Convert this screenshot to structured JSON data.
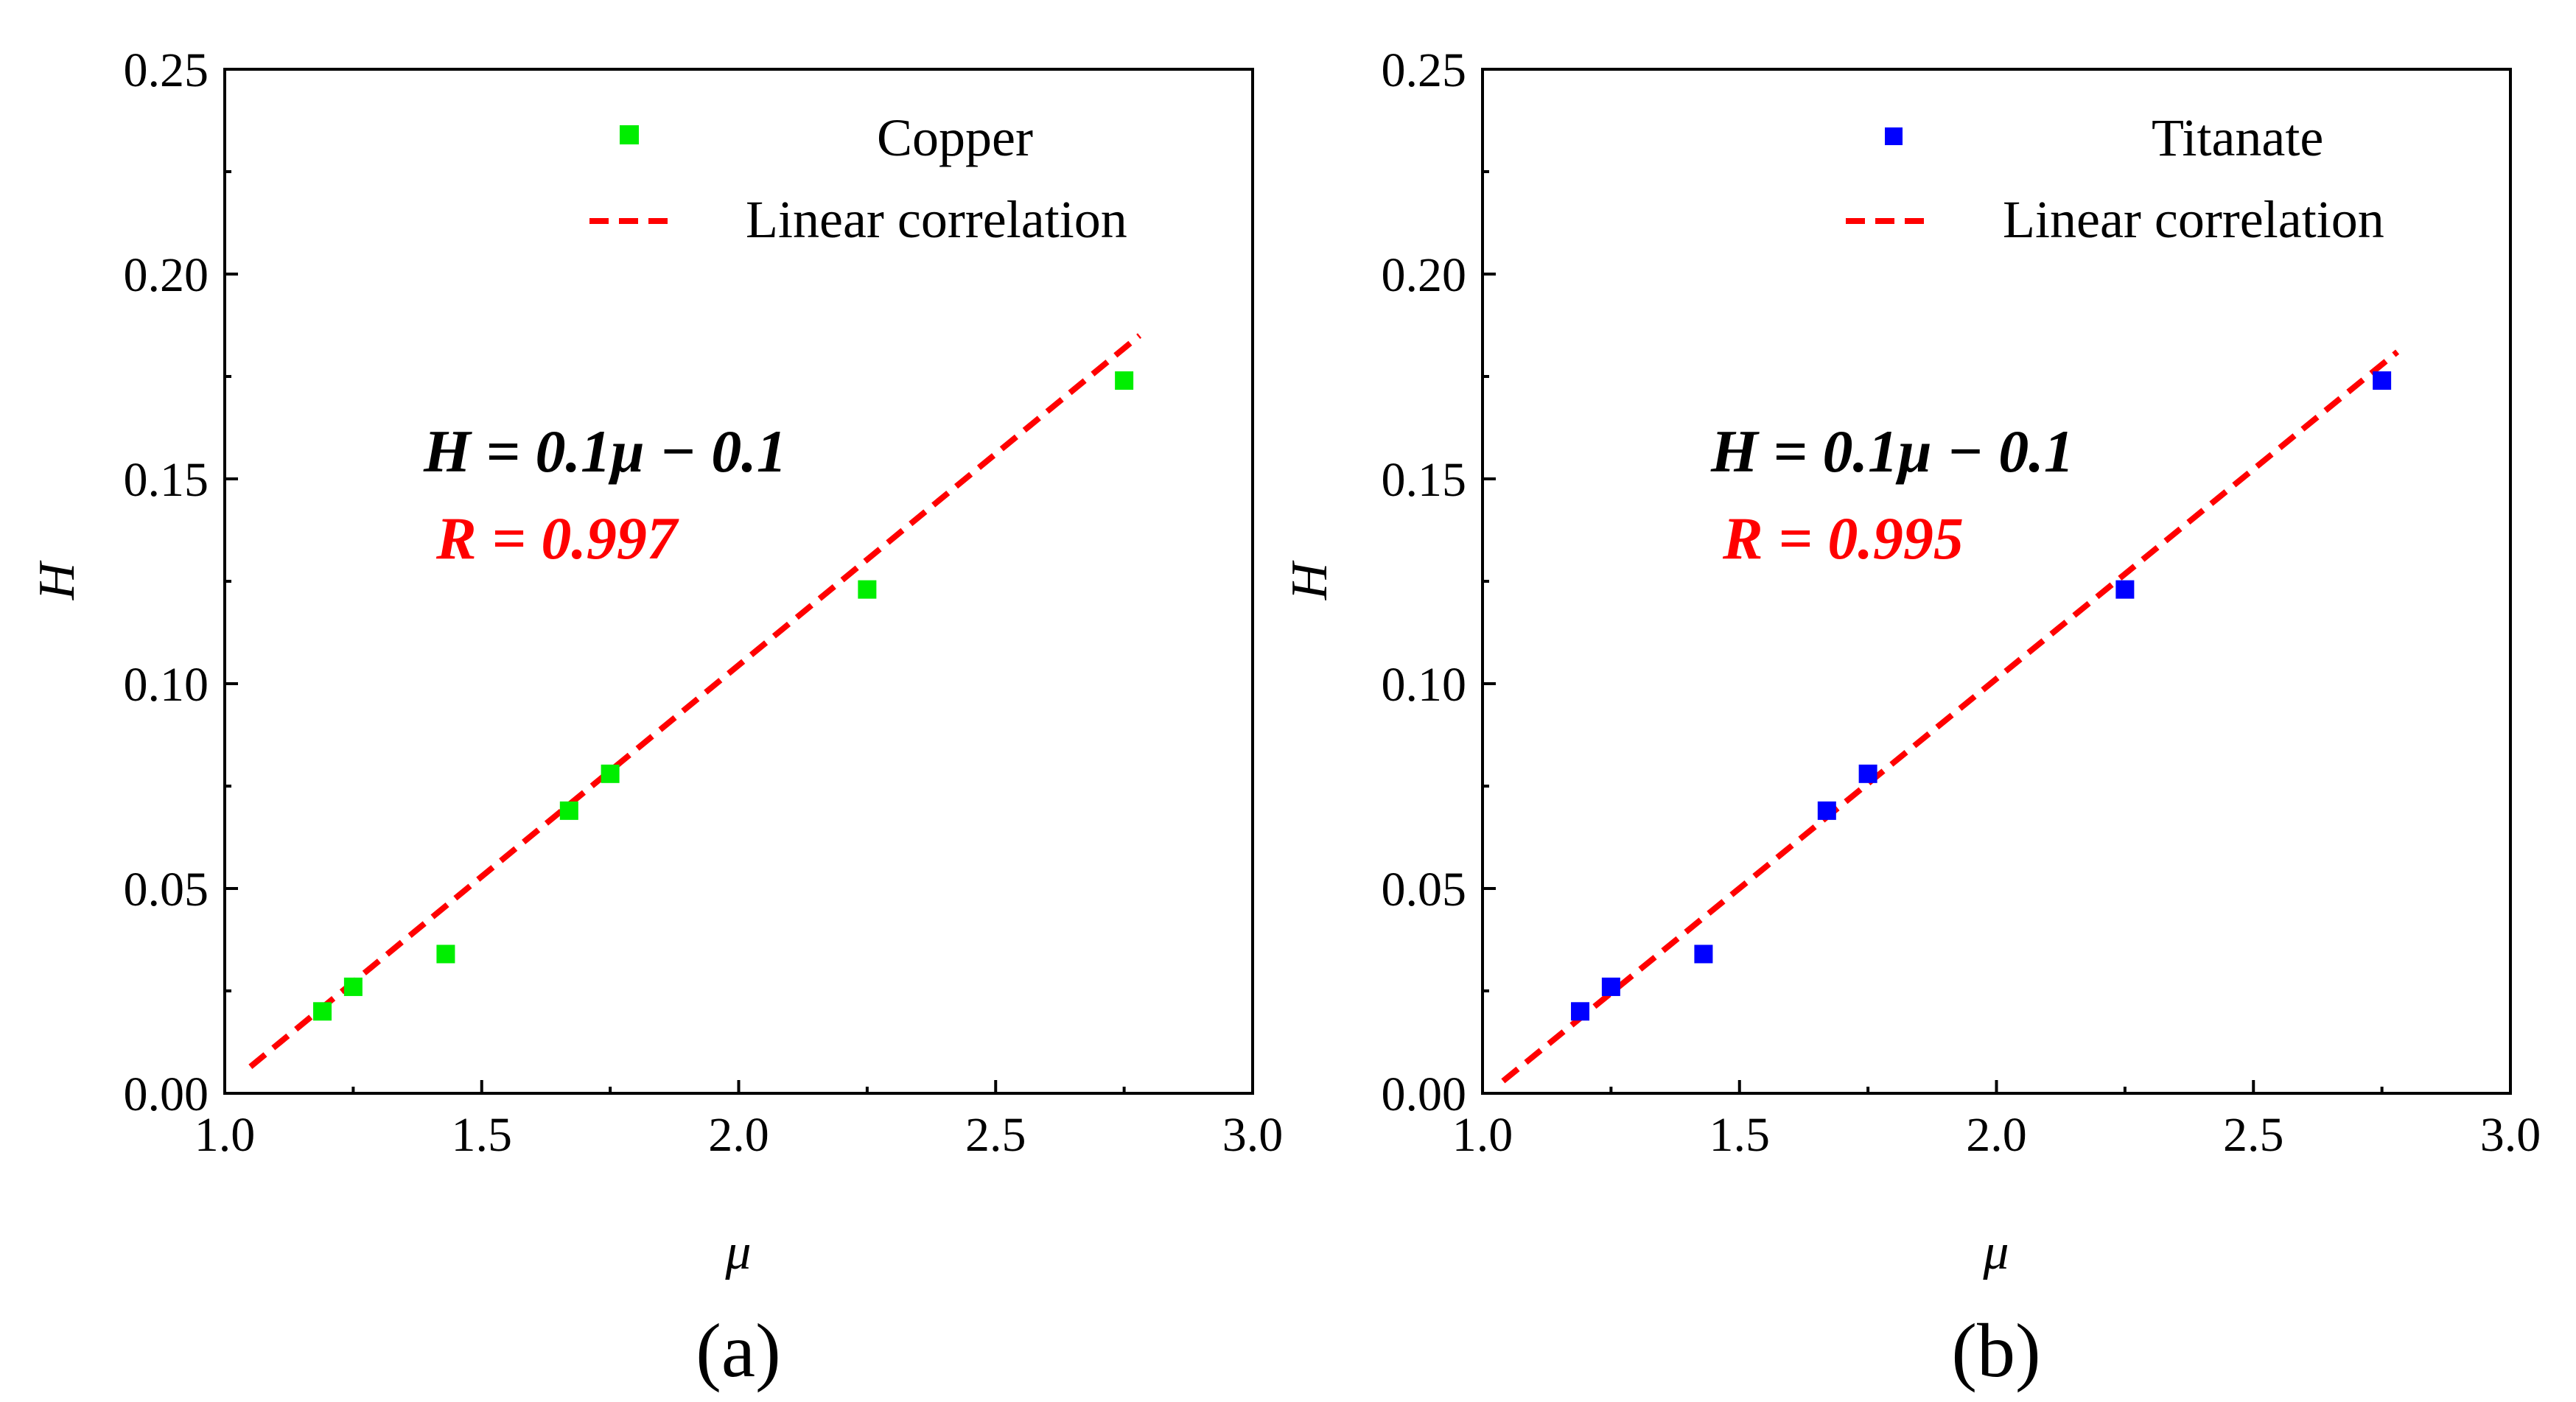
{
  "chart_data": [
    {
      "type": "scatter",
      "panel_label": "(a)",
      "xlabel": "μ",
      "ylabel": "H",
      "xlim": [
        1.0,
        3.0
      ],
      "ylim": [
        0.0,
        0.25
      ],
      "xticks": [
        "1.0",
        "1.5",
        "2.0",
        "2.5",
        "3.0"
      ],
      "yticks": [
        "0.00",
        "0.05",
        "0.10",
        "0.15",
        "0.20",
        "0.25"
      ],
      "grid": false,
      "legend_position": "top-right",
      "series": [
        {
          "name": "Copper",
          "kind": "points",
          "color": "#00ee00",
          "x": [
            1.19,
            1.25,
            1.43,
            1.67,
            1.75,
            2.25,
            2.75
          ],
          "y": [
            0.02,
            0.026,
            0.034,
            0.069,
            0.078,
            0.123,
            0.174
          ]
        },
        {
          "name": "Linear correlation",
          "kind": "dashed-line",
          "color": "#ff0000",
          "x": [
            1.05,
            2.78
          ],
          "y": [
            0.0065,
            0.185
          ]
        }
      ],
      "annotations": {
        "equation": "H = 0.1μ − 0.1",
        "equation_color": "#000000",
        "r_value": "R = 0.997",
        "r_color": "#ff0000"
      }
    },
    {
      "type": "scatter",
      "panel_label": "(b)",
      "xlabel": "μ",
      "ylabel": "H",
      "xlim": [
        1.0,
        3.0
      ],
      "ylim": [
        0.0,
        0.25
      ],
      "xticks": [
        "1.0",
        "1.5",
        "2.0",
        "2.5",
        "3.0"
      ],
      "yticks": [
        "0.00",
        "0.05",
        "0.10",
        "0.15",
        "0.20",
        "0.25"
      ],
      "grid": false,
      "legend_position": "top-right",
      "series": [
        {
          "name": "Titanate",
          "kind": "points",
          "color": "#0000ff",
          "x": [
            1.19,
            1.25,
            1.43,
            1.67,
            1.75,
            2.25,
            2.75
          ],
          "y": [
            0.02,
            0.026,
            0.034,
            0.069,
            0.078,
            0.123,
            0.174
          ]
        },
        {
          "name": "Linear correlation",
          "kind": "dashed-line",
          "color": "#ff0000",
          "x": [
            1.04,
            2.78
          ],
          "y": [
            0.003,
            0.181
          ]
        }
      ],
      "annotations": {
        "equation": "H = 0.1μ − 0.1",
        "equation_color": "#000000",
        "r_value": "R = 0.995",
        "r_color": "#ff0000"
      }
    }
  ]
}
